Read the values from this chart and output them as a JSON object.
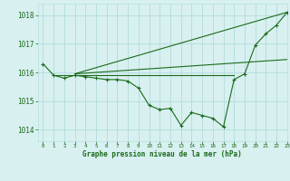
{
  "title": "Graphe pression niveau de la mer (hPa)",
  "bg_color": "#d8f0f0",
  "grid_color": "#b8dede",
  "line_color": "#1a6b1a",
  "xlim": [
    -0.5,
    23
  ],
  "ylim": [
    1013.6,
    1018.4
  ],
  "yticks": [
    1014,
    1015,
    1016,
    1017,
    1018
  ],
  "xticks": [
    0,
    1,
    2,
    3,
    4,
    5,
    6,
    7,
    8,
    9,
    10,
    11,
    12,
    13,
    14,
    15,
    16,
    17,
    18,
    19,
    20,
    21,
    22,
    23
  ],
  "hours": [
    0,
    1,
    2,
    3,
    4,
    5,
    6,
    7,
    8,
    9,
    10,
    11,
    12,
    13,
    14,
    15,
    16,
    17,
    18,
    19,
    20,
    21,
    22,
    23
  ],
  "series_main": [
    1016.3,
    1015.9,
    1015.8,
    1015.9,
    1015.85,
    1015.8,
    1015.75,
    1015.75,
    1015.7,
    1015.45,
    1014.85,
    1014.7,
    1014.75,
    1014.15,
    1014.6,
    1014.5,
    1014.4,
    1014.1,
    1015.75,
    1015.95,
    1016.95,
    1017.35,
    1017.65,
    1018.1
  ],
  "series_line1_x": [
    1,
    18
  ],
  "series_line1_y": [
    1015.9,
    1015.9
  ],
  "series_line2_x": [
    3,
    23
  ],
  "series_line2_y": [
    1015.95,
    1018.1
  ],
  "series_line3_x": [
    3,
    23
  ],
  "series_line3_y": [
    1015.95,
    1016.45
  ]
}
